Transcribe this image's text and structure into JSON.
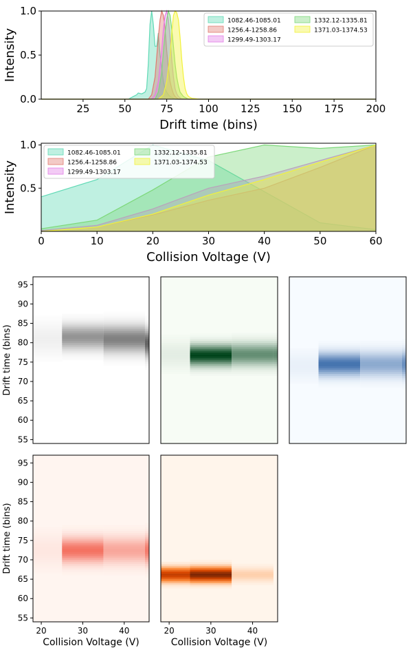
{
  "colors": {
    "s1": "#5fd9b5",
    "s2": "#e07a70",
    "s3": "#e27ee6",
    "s4": "#7dd87a",
    "s5": "#f2f23a"
  },
  "chart_data": [
    {
      "type": "area",
      "xlabel": "Drift time (bins)",
      "ylabel": "Intensity",
      "xlim": [
        0,
        200
      ],
      "ylim": [
        0,
        1.0
      ],
      "xticks": [
        25,
        50,
        75,
        100,
        125,
        150,
        175,
        200
      ],
      "yticks": [
        0.0,
        0.5,
        1.0
      ],
      "xtick_labels": [
        "25",
        "50",
        "75",
        "100",
        "125",
        "150",
        "175",
        "200"
      ],
      "ytick_labels": [
        "0.0",
        "0.5",
        "1.0"
      ],
      "legend_position": "top-right",
      "legend_columns": 2,
      "series": [
        {
          "name": "1082.46-1085.01",
          "x": [
            0,
            52,
            55,
            57,
            58,
            60,
            62,
            63,
            64,
            65,
            66,
            67,
            68,
            69,
            70,
            71,
            72,
            73,
            74,
            75,
            76,
            77,
            78,
            80,
            200
          ],
          "y": [
            0,
            0,
            0.03,
            0.05,
            0.07,
            0.06,
            0.08,
            0.12,
            0.4,
            0.85,
            1.0,
            0.85,
            0.6,
            0.6,
            0.75,
            0.5,
            0.35,
            0.2,
            0.12,
            0.08,
            0.05,
            0.03,
            0.02,
            0,
            0
          ]
        },
        {
          "name": "1256.4-1258.86",
          "x": [
            0,
            64,
            66,
            68,
            70,
            71,
            72,
            73,
            74,
            75,
            76,
            77,
            78,
            79,
            80,
            82,
            200
          ],
          "y": [
            0,
            0,
            0.05,
            0.25,
            0.7,
            0.9,
            1.0,
            0.95,
            0.8,
            0.55,
            0.35,
            0.2,
            0.12,
            0.06,
            0.03,
            0,
            0
          ]
        },
        {
          "name": "1299.49-1303.17",
          "x": [
            0,
            66,
            68,
            70,
            72,
            73,
            74,
            75,
            76,
            77,
            78,
            79,
            80,
            81,
            82,
            84,
            200
          ],
          "y": [
            0,
            0,
            0.05,
            0.2,
            0.55,
            0.8,
            0.95,
            1.0,
            0.9,
            0.7,
            0.45,
            0.25,
            0.12,
            0.06,
            0.03,
            0,
            0
          ]
        },
        {
          "name": "1332.12-1335.81",
          "x": [
            0,
            68,
            70,
            72,
            73,
            74,
            75,
            76,
            77,
            78,
            79,
            80,
            81,
            82,
            83,
            85,
            88,
            200
          ],
          "y": [
            0,
            0,
            0.08,
            0.3,
            0.55,
            0.75,
            0.9,
            1.0,
            0.95,
            0.8,
            0.6,
            0.4,
            0.25,
            0.15,
            0.08,
            0.03,
            0,
            0
          ]
        },
        {
          "name": "1371.03-1374.53",
          "x": [
            0,
            70,
            73,
            75,
            77,
            78,
            79,
            80,
            81,
            82,
            83,
            84,
            85,
            86,
            87,
            88,
            90,
            95,
            200
          ],
          "y": [
            0,
            0,
            0.05,
            0.2,
            0.5,
            0.75,
            0.95,
            1.0,
            0.98,
            0.9,
            0.7,
            0.45,
            0.25,
            0.12,
            0.06,
            0.03,
            0.01,
            0,
            0
          ]
        }
      ]
    },
    {
      "type": "area",
      "xlabel": "Collision Voltage (V)",
      "ylabel": "Intensity",
      "xlim": [
        0,
        60
      ],
      "ylim": [
        0,
        1.02
      ],
      "xticks": [
        0,
        10,
        20,
        30,
        40,
        50,
        60
      ],
      "yticks": [
        0.5,
        1.0
      ],
      "xtick_labels": [
        "0",
        "10",
        "20",
        "30",
        "40",
        "50",
        "60"
      ],
      "ytick_labels": [
        "0.5",
        "1.0"
      ],
      "legend_position": "top-left",
      "legend_columns": 2,
      "series": [
        {
          "name": "1082.46-1085.01",
          "x": [
            0,
            10,
            20,
            30,
            40,
            50,
            60
          ],
          "y": [
            0.4,
            0.6,
            1.0,
            0.82,
            0.46,
            0.1,
            0.02
          ]
        },
        {
          "name": "1256.4-1258.86",
          "x": [
            0,
            10,
            20,
            30,
            40,
            50,
            60
          ],
          "y": [
            0.0,
            0.05,
            0.19,
            0.36,
            0.5,
            0.74,
            1.0
          ]
        },
        {
          "name": "1299.49-1303.17",
          "x": [
            0,
            10,
            20,
            30,
            40,
            50,
            60
          ],
          "y": [
            0.01,
            0.07,
            0.26,
            0.5,
            0.64,
            0.82,
            1.0
          ]
        },
        {
          "name": "1332.12-1335.81",
          "x": [
            0,
            10,
            20,
            30,
            40,
            50,
            60
          ],
          "y": [
            0.03,
            0.13,
            0.48,
            0.86,
            1.0,
            0.96,
            1.0
          ]
        },
        {
          "name": "1371.03-1374.53",
          "x": [
            0,
            10,
            20,
            30,
            40,
            50,
            60
          ],
          "y": [
            0.0,
            0.05,
            0.2,
            0.42,
            0.6,
            0.8,
            1.0
          ]
        }
      ]
    },
    {
      "type": "heatmap",
      "ylabel": "Drift time (bins)",
      "colormap": "grays",
      "xlim": [
        18,
        46
      ],
      "ylim": [
        54,
        97
      ],
      "yticks": [
        55,
        60,
        65,
        70,
        75,
        80,
        85,
        90,
        95
      ],
      "ytick_labels": [
        "55",
        "60",
        "65",
        "70",
        "75",
        "80",
        "85",
        "90",
        "95"
      ],
      "columns": [
        {
          "x0": 18,
          "x1": 25,
          "center": 81,
          "peak": 0.08,
          "width": 3
        },
        {
          "x0": 25,
          "x1": 35,
          "center": 81.5,
          "peak": 0.55,
          "width": 2.2
        },
        {
          "x0": 35,
          "x1": 45,
          "center": 81,
          "peak": 0.65,
          "width": 2.4
        },
        {
          "x0": 45,
          "x1": 46,
          "center": 80,
          "peak": 0.8,
          "width": 2.4
        }
      ]
    },
    {
      "type": "heatmap",
      "colormap": "greens",
      "xlim": [
        18,
        46
      ],
      "ylim": [
        54,
        97
      ],
      "columns": [
        {
          "x0": 18,
          "x1": 25,
          "center": 77,
          "peak": 0.08,
          "width": 2.5
        },
        {
          "x0": 25,
          "x1": 35,
          "center": 76.8,
          "peak": 1.0,
          "width": 1.8
        },
        {
          "x0": 35,
          "x1": 45,
          "center": 77,
          "peak": 0.6,
          "width": 2.0
        },
        {
          "x0": 45,
          "x1": 46,
          "center": 77,
          "peak": 0.6,
          "width": 2.0
        }
      ]
    },
    {
      "type": "heatmap",
      "colormap": "blues",
      "xlim": [
        18,
        46
      ],
      "ylim": [
        54,
        97
      ],
      "columns": [
        {
          "x0": 18,
          "x1": 25,
          "center": 74,
          "peak": 0.06,
          "width": 2.5
        },
        {
          "x0": 25,
          "x1": 35,
          "center": 74.5,
          "peak": 0.75,
          "width": 2.0
        },
        {
          "x0": 35,
          "x1": 45,
          "center": 74.5,
          "peak": 0.45,
          "width": 2.2
        },
        {
          "x0": 45,
          "x1": 46,
          "center": 74.5,
          "peak": 0.6,
          "width": 2.2
        }
      ]
    },
    {
      "type": "heatmap",
      "ylabel": "Drift time (bins)",
      "xlabel": "Collision Voltage (V)",
      "colormap": "reds",
      "xlim": [
        18,
        46
      ],
      "ylim": [
        54,
        97
      ],
      "xticks": [
        20,
        30,
        40
      ],
      "xtick_labels": [
        "20",
        "30",
        "40"
      ],
      "yticks": [
        55,
        60,
        65,
        70,
        75,
        80,
        85,
        90,
        95
      ],
      "ytick_labels": [
        "55",
        "60",
        "65",
        "70",
        "75",
        "80",
        "85",
        "90",
        "95"
      ],
      "columns": [
        {
          "x0": 18,
          "x1": 25,
          "center": 72.5,
          "peak": 0.08,
          "width": 3
        },
        {
          "x0": 25,
          "x1": 35,
          "center": 72.5,
          "peak": 0.75,
          "width": 2.2
        },
        {
          "x0": 35,
          "x1": 45,
          "center": 72.5,
          "peak": 0.45,
          "width": 2.4
        },
        {
          "x0": 45,
          "x1": 46,
          "center": 72.5,
          "peak": 0.7,
          "width": 2.4
        }
      ]
    },
    {
      "type": "heatmap",
      "xlabel": "Collision Voltage (V)",
      "colormap": "oranges",
      "xlim": [
        18,
        46
      ],
      "ylim": [
        54,
        97
      ],
      "xticks": [
        20,
        30,
        40
      ],
      "xtick_labels": [
        "20",
        "30",
        "40"
      ],
      "columns": [
        {
          "x0": 18,
          "x1": 25,
          "center": 66.2,
          "peak": 0.75,
          "width": 1.2
        },
        {
          "x0": 25,
          "x1": 35,
          "center": 66.2,
          "peak": 1.0,
          "width": 1.2
        },
        {
          "x0": 35,
          "x1": 45,
          "center": 66.2,
          "peak": 0.12,
          "width": 1.2
        },
        {
          "x0": 45,
          "x1": 46,
          "center": 66.2,
          "peak": 0.0,
          "width": 1.2
        }
      ]
    }
  ]
}
